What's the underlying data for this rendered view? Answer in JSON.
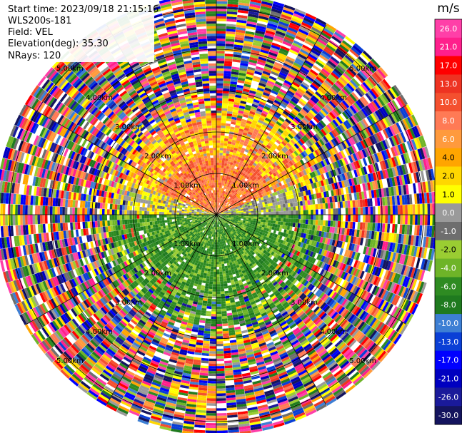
{
  "info": {
    "start_time": "Start time: 2023/09/18 21:15:16",
    "station": "WLS200s-181",
    "field": "Field: VEL",
    "elevation": "Elevation(deg): 35.30",
    "nrays": "NRays: 120"
  },
  "colorbar": {
    "unit": "m/s",
    "ticks": [
      "26.0",
      "21.0",
      "17.0",
      "13.0",
      "10.0",
      "8.0",
      "6.0",
      "4.0",
      "2.0",
      "1.0",
      "0.0",
      "-1.0",
      "-2.0",
      "-4.0",
      "-6.0",
      "-8.0",
      "-10.0",
      "-13.0",
      "-17.0",
      "-21.0",
      "-26.0",
      "-30.0"
    ],
    "colors": [
      "#ff3fa8",
      "#ff1f8c",
      "#ff0000",
      "#ee3322",
      "#f4502f",
      "#ff7a55",
      "#ff9a3d",
      "#ffa500",
      "#ffd700",
      "#ffff00",
      "#9a9a9a",
      "#6e6e6e",
      "#9acd32",
      "#6eb428",
      "#2e8b22",
      "#1f7a1f",
      "#3d7fd4",
      "#0a3fd6",
      "#0000ff",
      "#0000c0",
      "#1a1a9a",
      "#14145e"
    ]
  },
  "chart_data": {
    "type": "ppi-polar",
    "field": "VEL",
    "units": "m/s",
    "nrays": 120,
    "range_ring_labels": [
      "1.00km",
      "2.00km",
      "3.00km",
      "4.00km",
      "5.00km"
    ],
    "max_range_km": 5.3,
    "sectors": [
      {
        "azimuth_deg": [
          290,
          70
        ],
        "range_km": [
          0,
          2.4
        ],
        "velocity_ms": [
          6,
          10
        ],
        "color": "orange"
      },
      {
        "azimuth_deg": [
          90,
          270
        ],
        "range_km": [
          0,
          2.6
        ],
        "velocity_ms": [
          -6,
          -2
        ],
        "color": "green"
      },
      {
        "azimuth_deg": [
          70,
          100
        ],
        "range_km": [
          0,
          2.0
        ],
        "velocity_ms": [
          -1,
          1
        ],
        "color": "gray"
      },
      {
        "azimuth_deg": [
          250,
          290
        ],
        "range_km": [
          0,
          2.2
        ],
        "velocity_ms": [
          -1,
          2
        ],
        "color": "gray/yellow"
      }
    ],
    "outer_noise_from_km": 2.8
  }
}
